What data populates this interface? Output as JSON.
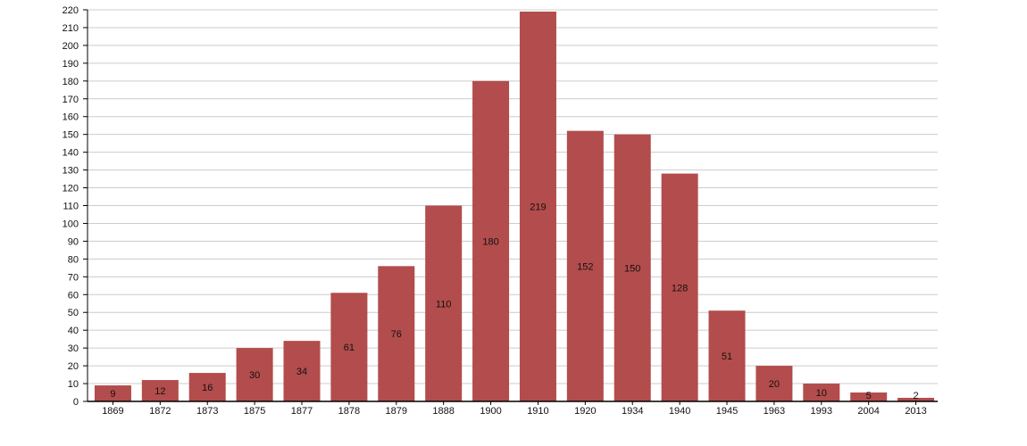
{
  "chart_data": {
    "type": "bar",
    "categories": [
      "1869",
      "1872",
      "1873",
      "1875",
      "1877",
      "1878",
      "1879",
      "1888",
      "1900",
      "1910",
      "1920",
      "1934",
      "1940",
      "1945",
      "1963",
      "1993",
      "2004",
      "2013"
    ],
    "values": [
      9,
      12,
      16,
      30,
      34,
      61,
      76,
      110,
      180,
      219,
      152,
      150,
      128,
      51,
      20,
      10,
      5,
      2
    ],
    "title": "",
    "xlabel": "",
    "ylabel": "",
    "ylim": [
      0,
      220
    ],
    "ytick_step": 10,
    "grid": true,
    "data_labels": true,
    "colors": {
      "bar": "#b34c4c",
      "grid": "#cccccc",
      "axis": "#000000"
    }
  }
}
